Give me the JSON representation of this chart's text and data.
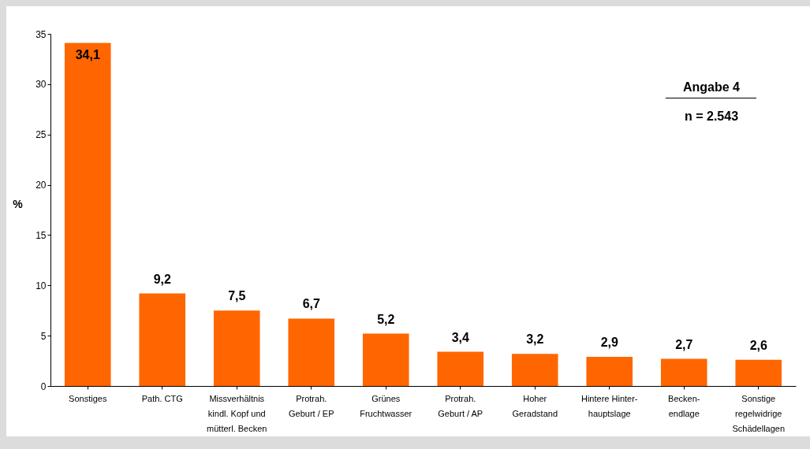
{
  "chart_data": {
    "type": "bar",
    "ylabel": "%",
    "categories": [
      "Sonstiges",
      "Path. CTG",
      "Missverhältnis\nkindl. Kopf und\nmütterl. Becken",
      "Protrah.\nGeburt / EP",
      "Grünes\nFruchtwasser",
      "Protrah.\nGeburt / AP",
      "Hoher\nGeradstand",
      "Hintere Hinter-\nhauptslage",
      "Becken-\nendlage",
      "Sonstige\nregelwidrige\nSchädellagen"
    ],
    "values": [
      34.1,
      9.2,
      7.5,
      6.7,
      5.2,
      3.4,
      3.2,
      2.9,
      2.7,
      2.6
    ],
    "value_labels": [
      "34,1",
      "9,2",
      "7,5",
      "6,7",
      "5,2",
      "3,4",
      "3,2",
      "2,9",
      "2,7",
      "2,6"
    ],
    "color": "#ff6600",
    "ylim": [
      0,
      35
    ],
    "yticks": [
      0,
      5,
      10,
      15,
      20,
      25,
      30,
      35
    ],
    "grid": false,
    "annotations": [
      "Angabe 4",
      "n = 2.543"
    ]
  }
}
